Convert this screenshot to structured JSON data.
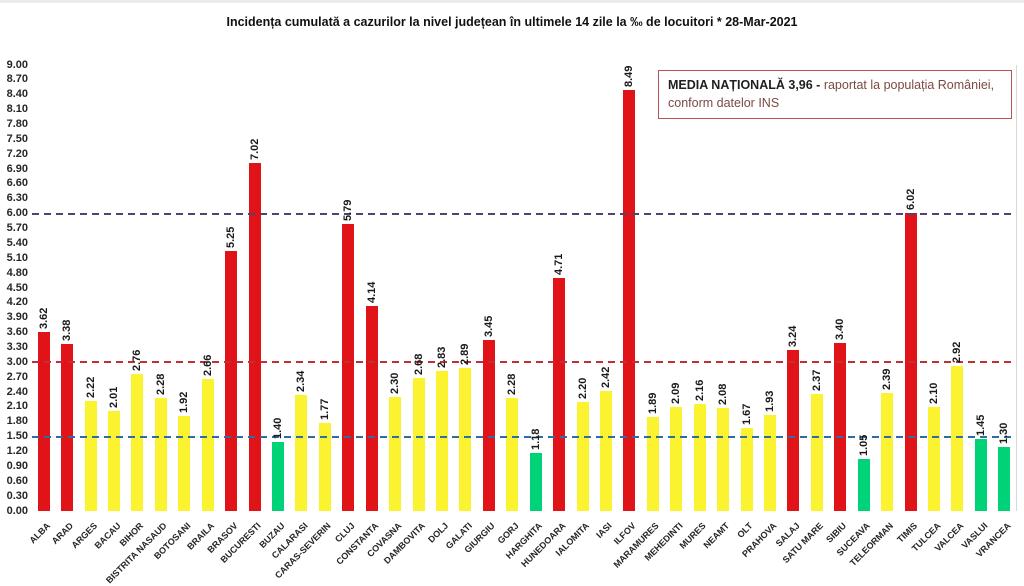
{
  "page": {
    "title": "Incidența cumulată a cazurilor la nivel județean în ultimele 14 zile la ‰ de locuitori * 28-Mar-2021"
  },
  "annotation": {
    "bold": "MEDIA NAȚIONALĂ  3,96 -",
    "text1": "raportat la populația României,",
    "text2": "conform datelor INS",
    "border_color": "#b85450"
  },
  "chart_data": {
    "type": "bar",
    "title": "Incidența cumulată a cazurilor la nivel județean în ultimele 14 zile la ‰ de locuitori * 28-Mar-2021",
    "xlabel": "",
    "ylabel": "",
    "ylim": [
      0,
      9
    ],
    "ytick_step": 0.3,
    "grid": false,
    "value_labels": true,
    "categories": [
      "ALBA",
      "ARAD",
      "ARGES",
      "BACAU",
      "BIHOR",
      "BISTRITA NASAUD",
      "BOTOSANI",
      "BRAILA",
      "BRASOV",
      "BUCURESTI",
      "BUZAU",
      "CALARASI",
      "CARAS-SEVERIN",
      "CLUJ",
      "CONSTANTA",
      "COVASNA",
      "DAMBOVITA",
      "DOLJ",
      "GALATI",
      "GIURGIU",
      "GORJ",
      "HARGHITA",
      "HUNEDOARA",
      "IALOMITA",
      "IASI",
      "ILFOV",
      "MARAMURES",
      "MEHEDINTI",
      "MURES",
      "NEAMT",
      "OLT",
      "PRAHOVA",
      "SALAJ",
      "SATU MARE",
      "SIBIU",
      "SUCEAVA",
      "TELEORMAN",
      "TIMIS",
      "TULCEA",
      "VALCEA",
      "VASLUI",
      "VRANCEA"
    ],
    "values": [
      3.62,
      3.38,
      2.22,
      2.01,
      2.76,
      2.28,
      1.92,
      2.66,
      5.25,
      7.02,
      1.4,
      2.34,
      1.77,
      5.79,
      4.14,
      2.3,
      2.68,
      2.83,
      2.89,
      3.45,
      2.28,
      1.18,
      4.71,
      2.2,
      2.42,
      8.49,
      1.89,
      2.09,
      2.16,
      2.08,
      1.67,
      1.93,
      3.24,
      2.37,
      3.4,
      1.05,
      2.39,
      6.02,
      2.1,
      2.92,
      1.45,
      1.3
    ],
    "levels": [
      "red",
      "red",
      "yellow",
      "yellow",
      "yellow",
      "yellow",
      "yellow",
      "yellow",
      "red",
      "red",
      "green",
      "yellow",
      "yellow",
      "red",
      "red",
      "yellow",
      "yellow",
      "yellow",
      "yellow",
      "red",
      "yellow",
      "green",
      "red",
      "yellow",
      "yellow",
      "red",
      "yellow",
      "yellow",
      "yellow",
      "yellow",
      "yellow",
      "yellow",
      "red",
      "yellow",
      "red",
      "green",
      "yellow",
      "red",
      "yellow",
      "yellow",
      "green",
      "green"
    ],
    "colors": {
      "red": "#e01418",
      "yellow": "#fcf330",
      "green": "#00d377"
    },
    "reference_lines": [
      {
        "value": 6.0,
        "color": "#50436f",
        "style": "dashed"
      },
      {
        "value": 3.0,
        "color": "#c22f36",
        "style": "dashed"
      },
      {
        "value": 1.5,
        "color": "#2e6da4",
        "style": "dashed"
      }
    ]
  }
}
